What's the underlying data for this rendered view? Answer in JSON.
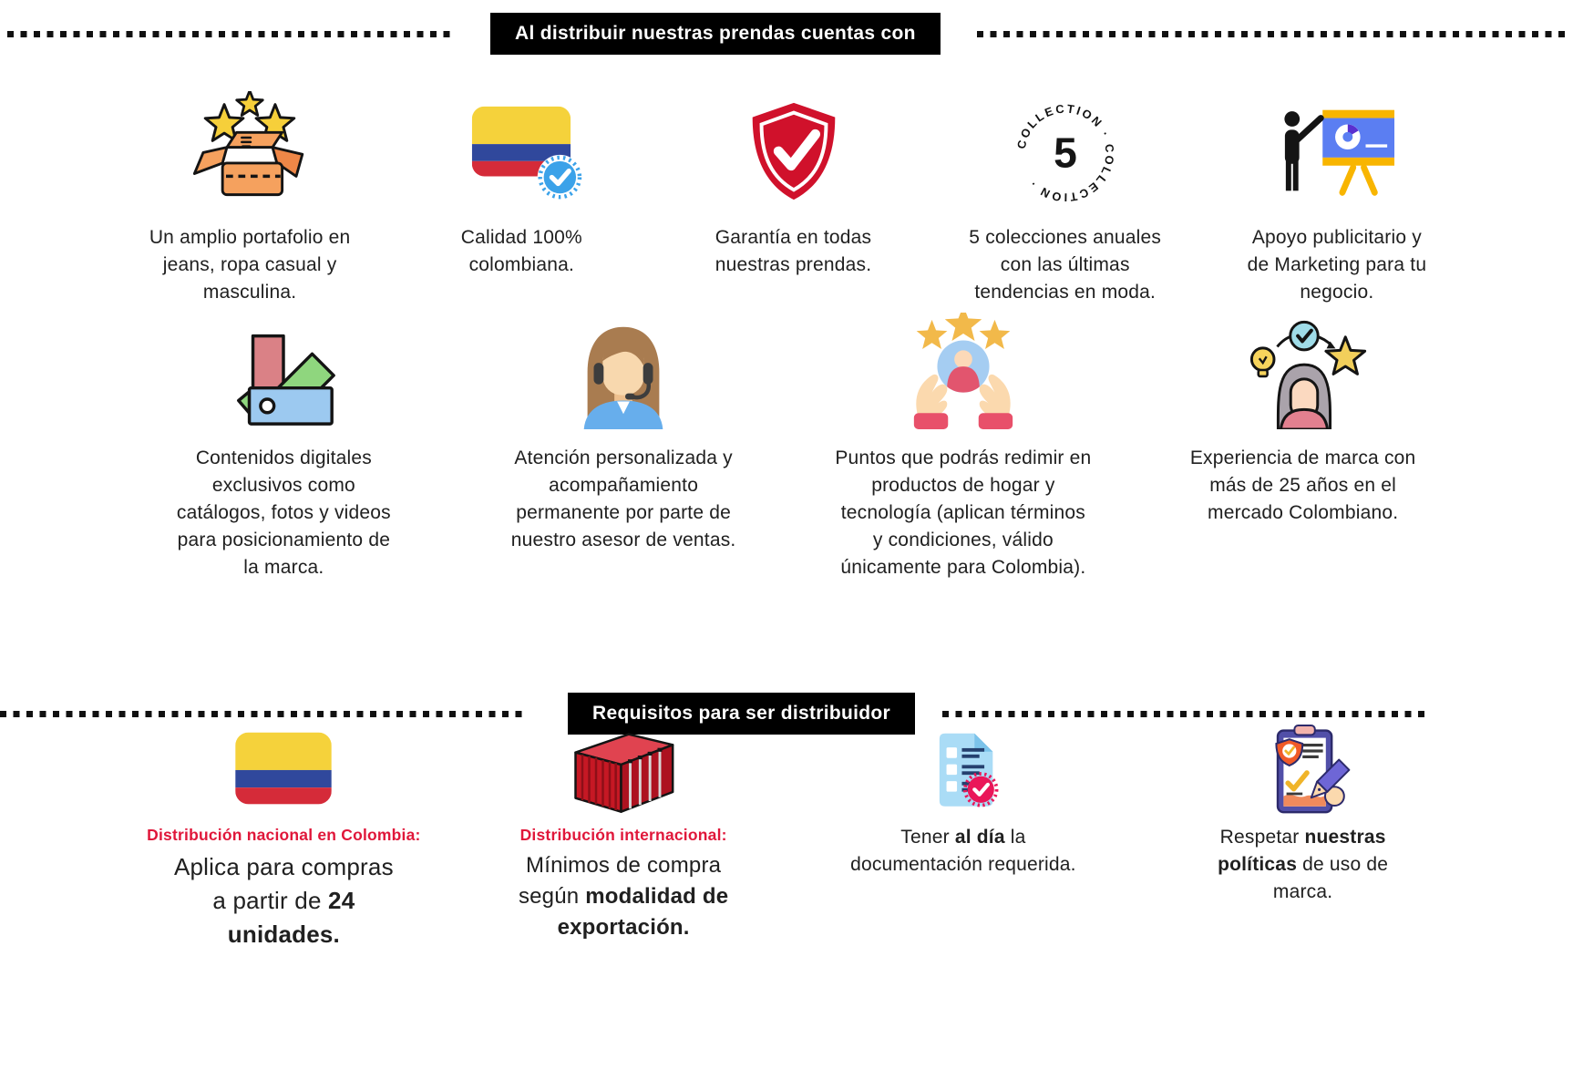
{
  "colors": {
    "banner_bg": "#000000",
    "banner_text": "#ffffff",
    "body_text": "#202020",
    "accent_red": "#e0173a",
    "flag_yellow": "#f5d23b",
    "flag_blue": "#30489c",
    "flag_red": "#d52b39",
    "shield_red": "#d0112b",
    "badge_blue": "#3ba2e9"
  },
  "sections": {
    "benefits": {
      "title": "Al distribuir nuestras prendas cuentas con",
      "stamp": {
        "ring_text": "COLLECTION · COLLECTION ·",
        "number": "5"
      },
      "items_row1": [
        {
          "icon": "gift-box-stars-icon",
          "text": "Un amplio portafolio en jeans, ropa casual y masculina."
        },
        {
          "icon": "colombia-flag-verified-icon",
          "text": "Calidad 100% colombiana."
        },
        {
          "icon": "warranty-shield-icon",
          "text": "Garantía en todas nuestras prendas."
        },
        {
          "icon": "collections-stamp-icon",
          "text": "5 colecciones anuales con las últimas tendencias en moda."
        },
        {
          "icon": "marketing-presentation-icon",
          "text": "Apoyo publicitario y de Marketing para tu negocio."
        }
      ],
      "items_row2": [
        {
          "icon": "color-swatches-icon",
          "text": "Contenidos digitales exclusivos como catálogos, fotos y videos para posicionamiento de la marca."
        },
        {
          "icon": "support-agent-icon",
          "text": "Atención personalizada y acompañamiento permanente por parte de nuestro asesor de ventas."
        },
        {
          "icon": "loyalty-points-icon",
          "text": "Puntos que podrás redimir en productos de hogar y tecnología (aplican términos y condiciones, válido únicamente para Colombia)."
        },
        {
          "icon": "brand-experience-icon",
          "text": "Experiencia de marca con más de 25 años en el mercado Colombiano."
        }
      ]
    },
    "requirements": {
      "title": "Requisitos para ser distribuidor",
      "items": [
        {
          "icon": "colombia-flag-icon",
          "label": "Distribución nacional en Colombia:",
          "text": "Aplica para compras a partir de **24 unidades.**"
        },
        {
          "icon": "shipping-container-icon",
          "label": "Distribución internacional:",
          "text": "Mínimos de compra según **modalidad de exportación.**"
        },
        {
          "icon": "document-checklist-icon",
          "label": "",
          "text": "Tener **al día** la documentación requerida."
        },
        {
          "icon": "brand-policies-icon",
          "label": "",
          "text": "Respetar **nuestras políticas** de uso de marca."
        }
      ]
    }
  }
}
